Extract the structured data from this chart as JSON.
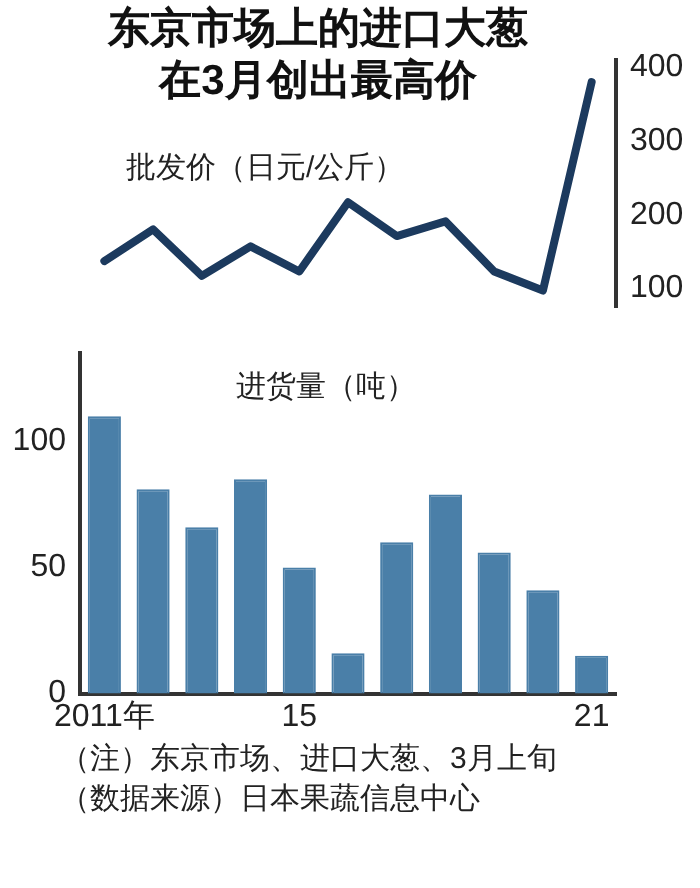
{
  "chart_data": [
    {
      "type": "line",
      "title": "东京市场上的进口大葱在3月创出最高价",
      "ylabel": "批发价（日元/公斤）",
      "categories": [
        null,
        null,
        null,
        null,
        null,
        null,
        null,
        null,
        null,
        null,
        null
      ],
      "values": [
        137,
        180,
        117,
        157,
        123,
        217,
        171,
        191,
        123,
        97,
        380
      ],
      "color": "#1c3a5e",
      "marker": "none",
      "ylim": [
        75,
        410
      ],
      "yticks": [
        100,
        200,
        300,
        400
      ],
      "tick_labels": "y"
    },
    {
      "type": "bar",
      "ylabel": "进货量（吨）",
      "categories": [
        "2011年",
        null,
        null,
        null,
        "15",
        null,
        null,
        null,
        null,
        null,
        "21"
      ],
      "values": [
        110,
        81,
        66,
        85,
        50,
        16,
        60,
        79,
        56,
        41,
        15
      ],
      "color": "#4a7fa8",
      "ylim": [
        0,
        135
      ],
      "yticks": [
        0,
        50,
        100
      ],
      "annotations": [
        "（注）东京市场、进口大葱、3月上旬",
        "（数据来源）日本果蔬信息中心"
      ]
    }
  ]
}
